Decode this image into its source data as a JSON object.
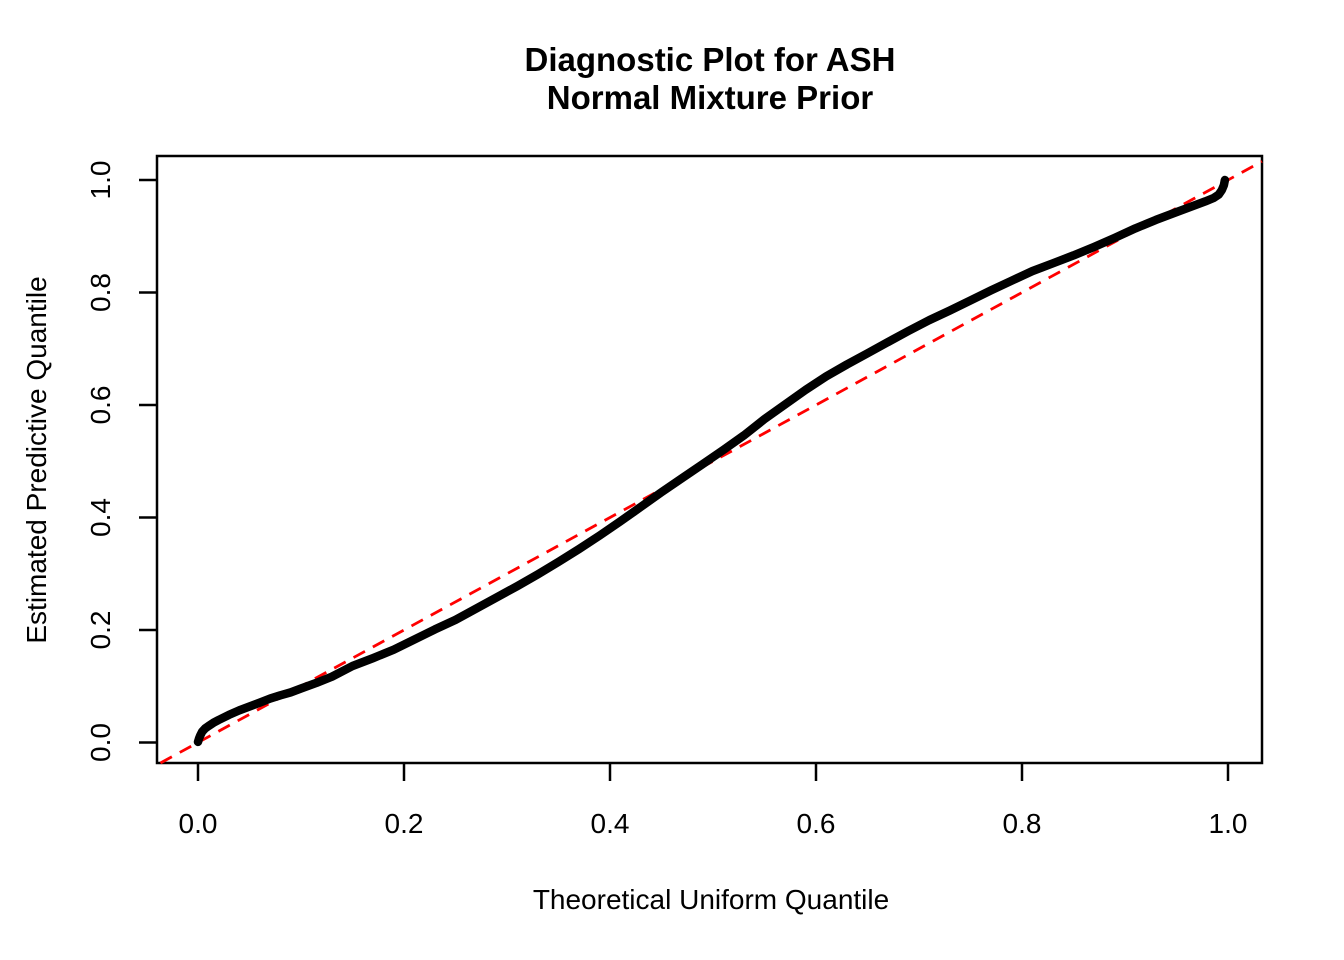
{
  "page": {
    "background": "#FFFFFF",
    "foreground": "#000000"
  },
  "chart_data": {
    "type": "line",
    "title_lines": [
      "Diagnostic Plot for ASH",
      "Normal Mixture Prior"
    ],
    "xlabel": "Theoretical Uniform Quantile",
    "ylabel": "Estimated Predictive Quantile",
    "xlim": [
      -0.04,
      1.04
    ],
    "ylim": [
      -0.04,
      1.04
    ],
    "grid": false,
    "legend": "none",
    "x_ticks": [
      0.0,
      0.2,
      0.4,
      0.6,
      0.8,
      1.0
    ],
    "x_tick_labels": [
      "0.0",
      "0.2",
      "0.4",
      "0.6",
      "0.8",
      "1.0"
    ],
    "y_ticks": [
      0.0,
      0.2,
      0.4,
      0.6,
      0.8,
      1.0
    ],
    "y_tick_labels": [
      "0.0",
      "0.2",
      "0.4",
      "0.6",
      "0.8",
      "1.0"
    ],
    "series": [
      {
        "name": "estimated-predictive-quantile-curve",
        "type": "line",
        "color": "#000000",
        "line_width": 8.5,
        "points": [
          [
            0.0,
            0.001
          ],
          [
            0.001,
            0.007
          ],
          [
            0.002,
            0.012
          ],
          [
            0.004,
            0.019
          ],
          [
            0.007,
            0.025
          ],
          [
            0.01,
            0.029
          ],
          [
            0.015,
            0.035
          ],
          [
            0.02,
            0.04
          ],
          [
            0.03,
            0.049
          ],
          [
            0.04,
            0.057
          ],
          [
            0.05,
            0.064
          ],
          [
            0.06,
            0.071
          ],
          [
            0.07,
            0.078
          ],
          [
            0.08,
            0.084
          ],
          [
            0.09,
            0.089
          ],
          [
            0.1,
            0.096
          ],
          [
            0.115,
            0.106
          ],
          [
            0.13,
            0.117
          ],
          [
            0.15,
            0.136
          ],
          [
            0.17,
            0.15
          ],
          [
            0.19,
            0.165
          ],
          [
            0.21,
            0.183
          ],
          [
            0.23,
            0.201
          ],
          [
            0.25,
            0.218
          ],
          [
            0.27,
            0.238
          ],
          [
            0.29,
            0.258
          ],
          [
            0.31,
            0.278
          ],
          [
            0.33,
            0.299
          ],
          [
            0.35,
            0.321
          ],
          [
            0.37,
            0.344
          ],
          [
            0.39,
            0.368
          ],
          [
            0.41,
            0.393
          ],
          [
            0.43,
            0.419
          ],
          [
            0.45,
            0.445
          ],
          [
            0.47,
            0.47
          ],
          [
            0.49,
            0.495
          ],
          [
            0.51,
            0.52
          ],
          [
            0.53,
            0.546
          ],
          [
            0.55,
            0.575
          ],
          [
            0.57,
            0.601
          ],
          [
            0.59,
            0.627
          ],
          [
            0.61,
            0.651
          ],
          [
            0.63,
            0.672
          ],
          [
            0.65,
            0.692
          ],
          [
            0.67,
            0.712
          ],
          [
            0.69,
            0.732
          ],
          [
            0.71,
            0.751
          ],
          [
            0.73,
            0.768
          ],
          [
            0.75,
            0.786
          ],
          [
            0.77,
            0.804
          ],
          [
            0.79,
            0.821
          ],
          [
            0.81,
            0.838
          ],
          [
            0.83,
            0.852
          ],
          [
            0.85,
            0.866
          ],
          [
            0.87,
            0.881
          ],
          [
            0.89,
            0.897
          ],
          [
            0.91,
            0.914
          ],
          [
            0.93,
            0.929
          ],
          [
            0.95,
            0.943
          ],
          [
            0.965,
            0.953
          ],
          [
            0.978,
            0.962
          ],
          [
            0.986,
            0.968
          ],
          [
            0.991,
            0.974
          ],
          [
            0.994,
            0.982
          ],
          [
            0.996,
            0.991
          ],
          [
            0.997,
            1.0
          ]
        ]
      }
    ],
    "reference_line": {
      "name": "y-equals-x-diagonal",
      "slope": 1,
      "intercept": 0,
      "color": "#FF0000",
      "style": "dashed",
      "line_width": 2.8
    }
  }
}
